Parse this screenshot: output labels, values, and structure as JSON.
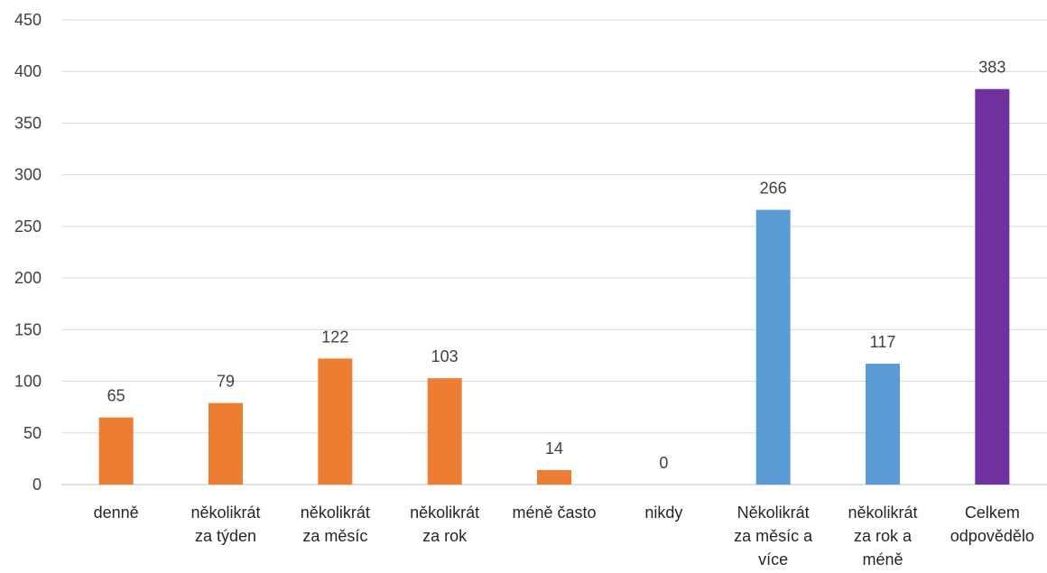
{
  "chart_data": {
    "type": "bar",
    "categories": [
      [
        "denně"
      ],
      [
        "několikrát",
        "za týden"
      ],
      [
        "několikrát",
        "za měsíc"
      ],
      [
        "několikrát",
        "za rok"
      ],
      [
        "méně často"
      ],
      [
        "nikdy"
      ],
      [
        "Několikrát",
        "za měsíc a",
        "více"
      ],
      [
        "několikrát",
        "za rok a",
        "méně"
      ],
      [
        "Celkem",
        "odpovědělo"
      ]
    ],
    "values": [
      65,
      79,
      122,
      103,
      14,
      0,
      266,
      117,
      383
    ],
    "colors": [
      "#ed7d31",
      "#ed7d31",
      "#ed7d31",
      "#ed7d31",
      "#ed7d31",
      "#ed7d31",
      "#5b9bd5",
      "#5b9bd5",
      "#7030a0"
    ],
    "ylim": [
      0,
      450
    ],
    "yticks": [
      0,
      50,
      100,
      150,
      200,
      250,
      300,
      350,
      400,
      450
    ],
    "grid": true,
    "legend": "none"
  }
}
